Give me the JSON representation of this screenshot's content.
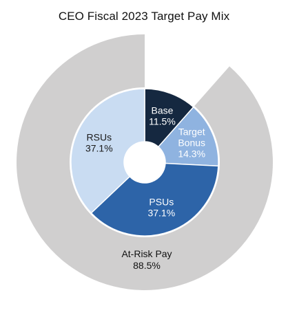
{
  "chart_data": {
    "type": "pie",
    "title": "CEO Fiscal 2023 Target Pay Mix",
    "outer_ring": [
      {
        "label": "At-Risk Pay",
        "value_label": "88.5%",
        "value": 88.5,
        "color": "#d0cfcf"
      }
    ],
    "inner_ring": [
      {
        "label": "Base",
        "value_label": "11.5%",
        "value": 11.5,
        "color": "#152840",
        "text_color": "#ffffff"
      },
      {
        "label": "Target\nBonus",
        "value_label": "14.3%",
        "value": 14.3,
        "color": "#8fb3e0",
        "text_color": "#ffffff"
      },
      {
        "label": "PSUs",
        "value_label": "37.1%",
        "value": 37.1,
        "color": "#2d64a8",
        "text_color": "#ffffff"
      },
      {
        "label": "RSUs",
        "value_label": "37.1%",
        "value": 37.1,
        "color": "#c9dcf2",
        "text_color": "#1a1a1a"
      }
    ]
  }
}
